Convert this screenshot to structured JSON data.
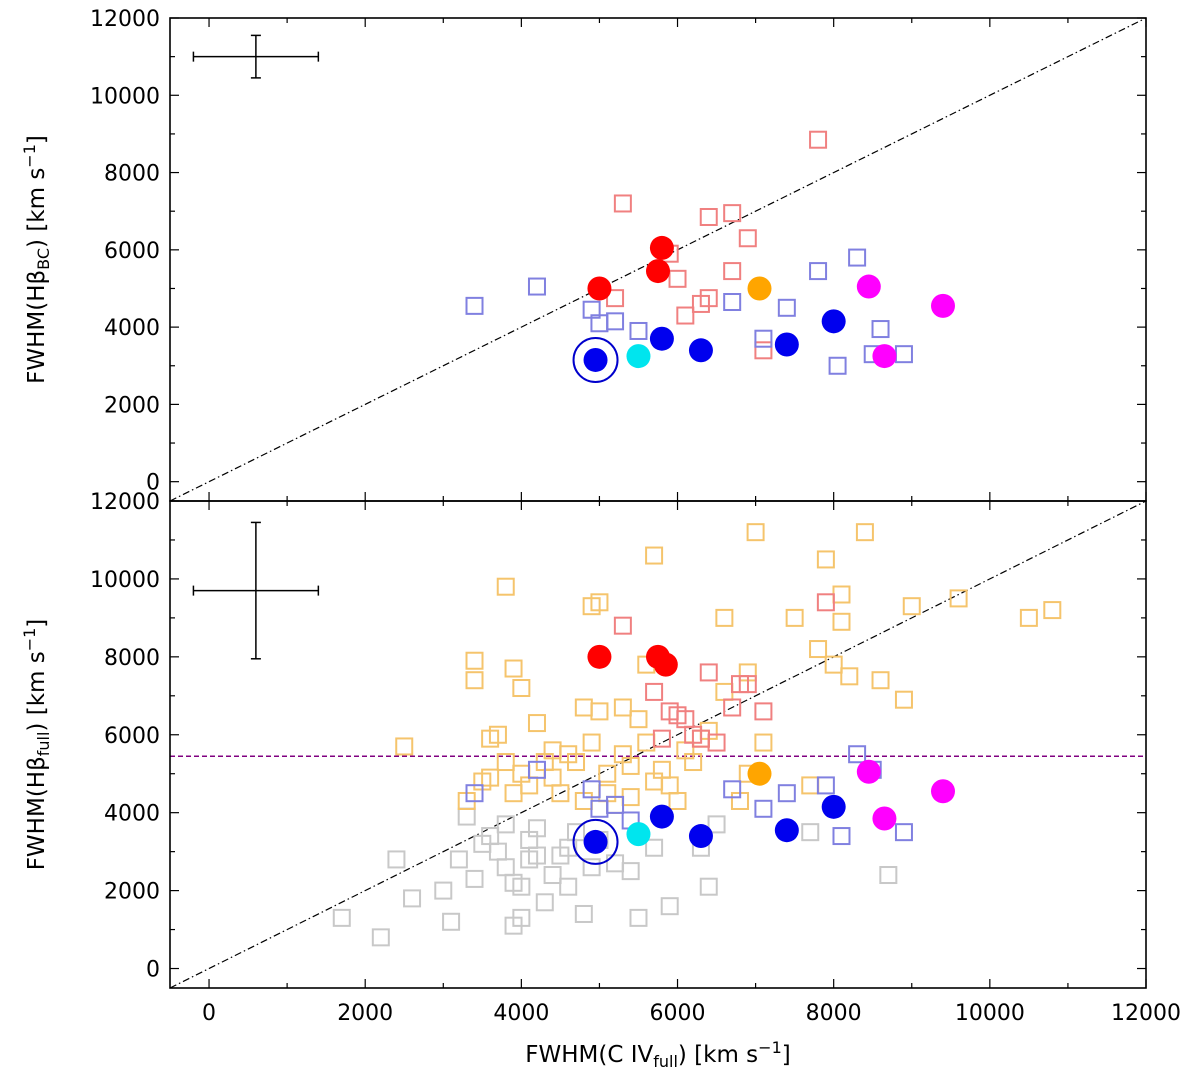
{
  "chart_data": [
    {
      "type": "scatter",
      "panel": "top",
      "xlabel": "FWHM(C IVfull) [km s−1]",
      "ylabel": "FWHM(HβBC) [km s−1]",
      "ylabel_parts": {
        "prefix": "FWHM(Hβ",
        "sub": "BC",
        "mid": ") [km s",
        "sup": "−1",
        "suffix": "]"
      },
      "xlim": [
        -500,
        12000
      ],
      "ylim": [
        -500,
        12000
      ],
      "xticks": [
        0,
        2000,
        4000,
        6000,
        8000,
        10000,
        12000
      ],
      "yticks": [
        0,
        2000,
        4000,
        6000,
        8000,
        10000,
        12000
      ],
      "ytick_labels": [
        "0",
        "2000",
        "4000",
        "6000",
        "8000",
        "10000",
        "12000"
      ],
      "one_to_one_line": true,
      "error_bar": {
        "x": 600,
        "y": 11000,
        "xerr": 800,
        "yerr": 550
      },
      "series": [
        {
          "name": "red open squares",
          "marker": "open-square",
          "color": "#f08080",
          "points": [
            [
              5300,
              7200
            ],
            [
              6400,
              6850
            ],
            [
              6700,
              6950
            ],
            [
              7800,
              8850
            ],
            [
              5900,
              5900
            ],
            [
              6900,
              6300
            ],
            [
              6000,
              5250
            ],
            [
              6700,
              5450
            ],
            [
              6100,
              4300
            ],
            [
              6400,
              4750
            ],
            [
              6300,
              4600
            ],
            [
              7100,
              3400
            ],
            [
              5200,
              4750
            ]
          ]
        },
        {
          "name": "blue open squares",
          "marker": "open-square",
          "color": "#8080e0",
          "points": [
            [
              3400,
              4550
            ],
            [
              4200,
              5050
            ],
            [
              4900,
              4450
            ],
            [
              5000,
              4100
            ],
            [
              5200,
              4150
            ],
            [
              5500,
              3900
            ],
            [
              6700,
              4650
            ],
            [
              7100,
              3700
            ],
            [
              7400,
              4500
            ],
            [
              7800,
              5450
            ],
            [
              8300,
              5800
            ],
            [
              8050,
              3000
            ],
            [
              8600,
              3950
            ],
            [
              8500,
              3300
            ],
            [
              8900,
              3300
            ]
          ]
        },
        {
          "name": "red filled",
          "marker": "filled-circle",
          "color": "#ff0000",
          "points": [
            [
              5000,
              5000
            ],
            [
              5800,
              6050
            ],
            [
              5750,
              5450
            ]
          ]
        },
        {
          "name": "orange filled",
          "marker": "filled-circle",
          "color": "#ffa500",
          "points": [
            [
              7050,
              5000
            ]
          ]
        },
        {
          "name": "magenta filled",
          "marker": "filled-circle",
          "color": "#ff00ff",
          "points": [
            [
              8450,
              5050
            ],
            [
              9400,
              4550
            ],
            [
              8650,
              3250
            ]
          ]
        },
        {
          "name": "blue filled",
          "marker": "filled-circle",
          "color": "#0000ee",
          "points": [
            [
              4950,
              3150
            ],
            [
              5800,
              3700
            ],
            [
              6300,
              3400
            ],
            [
              7400,
              3550
            ],
            [
              8000,
              4150
            ]
          ]
        },
        {
          "name": "cyan filled",
          "marker": "filled-circle",
          "color": "#00e5ee",
          "points": [
            [
              5500,
              3250
            ]
          ]
        },
        {
          "name": "circled",
          "marker": "ring",
          "color": "#0000cc",
          "points": [
            [
              4950,
              3150
            ]
          ]
        }
      ]
    },
    {
      "type": "scatter",
      "panel": "bottom",
      "xlabel": "FWHM(C IVfull) [km s−1]",
      "xlabel_parts": {
        "prefix": "FWHM(C IV",
        "sub": "full",
        "mid": ") [km s",
        "sup": "−1",
        "suffix": "]"
      },
      "ylabel": "FWHM(Hβfull) [km s−1]",
      "ylabel_parts": {
        "prefix": "FWHM(Hβ",
        "sub": "full",
        "mid": ") [km s",
        "sup": "−1",
        "suffix": "]"
      },
      "xlim": [
        -500,
        12000
      ],
      "ylim": [
        -500,
        12000
      ],
      "xticks": [
        0,
        2000,
        4000,
        6000,
        8000,
        10000,
        12000
      ],
      "xtick_labels": [
        "0",
        "2000",
        "4000",
        "6000",
        "8000",
        "10000",
        "12000"
      ],
      "yticks": [
        0,
        2000,
        4000,
        6000,
        8000,
        10000,
        12000
      ],
      "ytick_labels": [
        "0",
        "2000",
        "4000",
        "6000",
        "8000",
        "10000",
        "12000"
      ],
      "one_to_one_line": true,
      "hline": {
        "y": 5450,
        "color": "#800080"
      },
      "error_bar": {
        "x": 600,
        "y": 9700,
        "xerr": 800,
        "yerr": 1750
      },
      "series": [
        {
          "name": "grey open squares",
          "marker": "open-square",
          "color": "#c8c8c8",
          "points": [
            [
              1700,
              1300
            ],
            [
              2200,
              800
            ],
            [
              2400,
              2800
            ],
            [
              2600,
              1800
            ],
            [
              3000,
              2000
            ],
            [
              3100,
              1200
            ],
            [
              3200,
              2800
            ],
            [
              3400,
              2300
            ],
            [
              3600,
              3400
            ],
            [
              3700,
              3000
            ],
            [
              3800,
              2600
            ],
            [
              3900,
              1100
            ],
            [
              4000,
              1300
            ],
            [
              4000,
              2100
            ],
            [
              4100,
              2800
            ],
            [
              4100,
              3300
            ],
            [
              4200,
              3600
            ],
            [
              4300,
              1700
            ],
            [
              4400,
              2400
            ],
            [
              4500,
              2900
            ],
            [
              4600,
              2100
            ],
            [
              4700,
              3500
            ],
            [
              4800,
              1400
            ],
            [
              4900,
              2600
            ],
            [
              5000,
              3300
            ],
            [
              5200,
              2700
            ],
            [
              5400,
              2500
            ],
            [
              5500,
              1300
            ],
            [
              5700,
              3100
            ],
            [
              5900,
              1600
            ],
            [
              6300,
              3100
            ],
            [
              6400,
              2100
            ],
            [
              6500,
              3700
            ],
            [
              7700,
              3500
            ],
            [
              8700,
              2400
            ],
            [
              3800,
              3700
            ],
            [
              3500,
              3200
            ],
            [
              4200,
              2900
            ],
            [
              3300,
              3900
            ],
            [
              3900,
              2200
            ],
            [
              4600,
              3100
            ]
          ]
        },
        {
          "name": "orange open squares",
          "marker": "open-square",
          "color": "#f5c46c",
          "points": [
            [
              2500,
              5700
            ],
            [
              3300,
              4300
            ],
            [
              3400,
              7900
            ],
            [
              3400,
              7400
            ],
            [
              3500,
              4800
            ],
            [
              3600,
              5900
            ],
            [
              3700,
              6000
            ],
            [
              3800,
              5300
            ],
            [
              3800,
              9800
            ],
            [
              3900,
              4500
            ],
            [
              3900,
              7700
            ],
            [
              4000,
              7200
            ],
            [
              4000,
              5000
            ],
            [
              4200,
              6300
            ],
            [
              4400,
              5600
            ],
            [
              4500,
              4500
            ],
            [
              4700,
              5300
            ],
            [
              4800,
              6700
            ],
            [
              4800,
              4300
            ],
            [
              4900,
              9300
            ],
            [
              5000,
              6600
            ],
            [
              5000,
              9400
            ],
            [
              5100,
              5000
            ],
            [
              5300,
              5500
            ],
            [
              5400,
              4400
            ],
            [
              5500,
              6400
            ],
            [
              5600,
              5800
            ],
            [
              5600,
              7800
            ],
            [
              5700,
              10600
            ],
            [
              5800,
              5100
            ],
            [
              5900,
              4700
            ],
            [
              6000,
              4300
            ],
            [
              6300,
              5900
            ],
            [
              6400,
              6100
            ],
            [
              6600,
              7100
            ],
            [
              6600,
              9000
            ],
            [
              6800,
              4300
            ],
            [
              6900,
              7600
            ],
            [
              7000,
              11200
            ],
            [
              7100,
              5800
            ],
            [
              7500,
              9000
            ],
            [
              7700,
              4700
            ],
            [
              7800,
              8200
            ],
            [
              7900,
              10500
            ],
            [
              8000,
              7800
            ],
            [
              8100,
              8900
            ],
            [
              8100,
              9600
            ],
            [
              8200,
              7500
            ],
            [
              8400,
              11200
            ],
            [
              8600,
              7400
            ],
            [
              8900,
              6900
            ],
            [
              9000,
              9300
            ],
            [
              9600,
              9500
            ],
            [
              10500,
              9000
            ],
            [
              10800,
              9200
            ],
            [
              4300,
              5300
            ],
            [
              4100,
              4700
            ],
            [
              5200,
              4200
            ],
            [
              4600,
              5500
            ],
            [
              5400,
              5200
            ],
            [
              6200,
              5300
            ],
            [
              5700,
              4800
            ],
            [
              5300,
              6700
            ],
            [
              6100,
              5600
            ],
            [
              5100,
              4500
            ],
            [
              4400,
              4900
            ],
            [
              6900,
              5000
            ],
            [
              3600,
              4900
            ],
            [
              4900,
              5800
            ]
          ]
        },
        {
          "name": "red open squares",
          "marker": "open-square",
          "color": "#f08080",
          "points": [
            [
              5300,
              8800
            ],
            [
              5700,
              7100
            ],
            [
              5900,
              6600
            ],
            [
              6000,
              6500
            ],
            [
              6100,
              6400
            ],
            [
              6300,
              5900
            ],
            [
              6400,
              7600
            ],
            [
              6700,
              6700
            ],
            [
              6800,
              7300
            ],
            [
              6900,
              7300
            ],
            [
              7100,
              6600
            ],
            [
              7900,
              9400
            ],
            [
              5800,
              5900
            ],
            [
              6200,
              6000
            ],
            [
              6500,
              5800
            ]
          ]
        },
        {
          "name": "blue open squares",
          "marker": "open-square",
          "color": "#8080e0",
          "points": [
            [
              3400,
              4500
            ],
            [
              4200,
              5100
            ],
            [
              4900,
              4600
            ],
            [
              5000,
              4100
            ],
            [
              5200,
              4200
            ],
            [
              5400,
              3800
            ],
            [
              6700,
              4600
            ],
            [
              7100,
              4100
            ],
            [
              7400,
              4500
            ],
            [
              7900,
              4700
            ],
            [
              8100,
              3400
            ],
            [
              8300,
              5500
            ],
            [
              8500,
              5100
            ],
            [
              8900,
              3500
            ]
          ]
        },
        {
          "name": "red filled",
          "marker": "filled-circle",
          "color": "#ff0000",
          "points": [
            [
              5000,
              8000
            ],
            [
              5750,
              8000
            ],
            [
              5850,
              7800
            ]
          ]
        },
        {
          "name": "orange filled",
          "marker": "filled-circle",
          "color": "#ffa500",
          "points": [
            [
              7050,
              5000
            ]
          ]
        },
        {
          "name": "magenta filled",
          "marker": "filled-circle",
          "color": "#ff00ff",
          "points": [
            [
              8450,
              5050
            ],
            [
              9400,
              4550
            ],
            [
              8650,
              3850
            ]
          ]
        },
        {
          "name": "blue filled",
          "marker": "filled-circle",
          "color": "#0000ee",
          "points": [
            [
              4950,
              3250
            ],
            [
              5800,
              3900
            ],
            [
              6300,
              3400
            ],
            [
              7400,
              3550
            ],
            [
              8000,
              4150
            ]
          ]
        },
        {
          "name": "cyan filled",
          "marker": "filled-circle",
          "color": "#00e5ee",
          "points": [
            [
              5500,
              3450
            ]
          ]
        },
        {
          "name": "circled",
          "marker": "ring",
          "color": "#0000cc",
          "points": [
            [
              4950,
              3250
            ]
          ]
        }
      ]
    }
  ]
}
